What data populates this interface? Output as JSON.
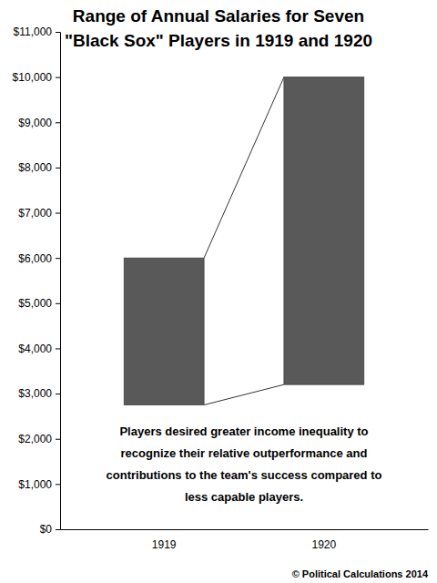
{
  "chart_data": {
    "type": "range_bar",
    "title": "Range of Annual Salaries for Seven \"Black Sox\" Players in 1919 and 1920",
    "categories": [
      "1919",
      "1920"
    ],
    "low": [
      2750,
      3200
    ],
    "high": [
      6000,
      10000
    ],
    "color": "#595959",
    "ylim": [
      0,
      11000
    ],
    "yticks": [
      {
        "value": 0,
        "label": "$0"
      },
      {
        "value": 1000,
        "label": "$1,000"
      },
      {
        "value": 2000,
        "label": "$2,000"
      },
      {
        "value": 3000,
        "label": "$3,000"
      },
      {
        "value": 4000,
        "label": "$4,000"
      },
      {
        "value": 5000,
        "label": "$5,000"
      },
      {
        "value": 6000,
        "label": "$6,000"
      },
      {
        "value": 7000,
        "label": "$7,000"
      },
      {
        "value": 8000,
        "label": "$8,000"
      },
      {
        "value": 9000,
        "label": "$9,000"
      },
      {
        "value": 10000,
        "label": "$10,000"
      },
      {
        "value": 11000,
        "label": "$11,000"
      }
    ],
    "grid": false,
    "annotations": [
      "Players desired greater income inequality to recognize their relative outperformance and contributions to the team's success compared to less capable players."
    ],
    "source": "© Political Calculations 2014"
  }
}
